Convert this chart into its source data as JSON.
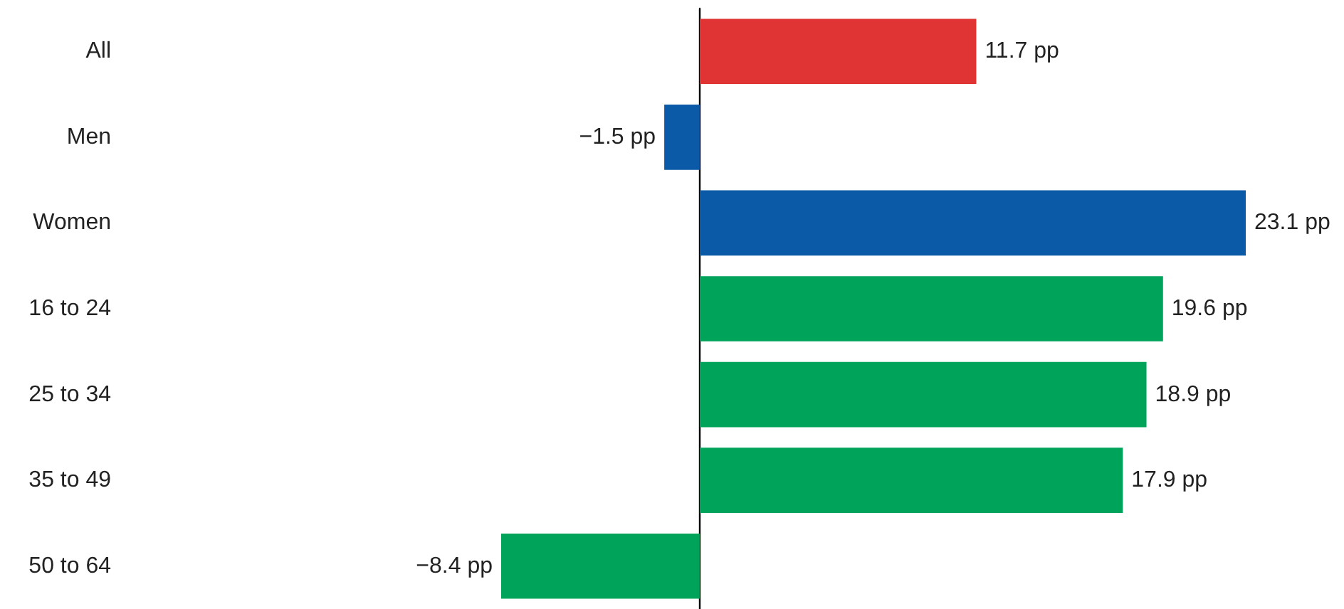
{
  "chart_data": {
    "type": "bar",
    "orientation": "horizontal",
    "categories": [
      "All",
      "Men",
      "Women",
      "16 to 24",
      "25 to 34",
      "35 to 49",
      "50 to 64"
    ],
    "values": [
      11.7,
      -1.5,
      23.1,
      19.6,
      18.9,
      17.9,
      -8.4
    ],
    "colors": [
      "#e03333",
      "#0b5aa8",
      "#0b5aa8",
      "#00a35a",
      "#00a35a",
      "#00a35a",
      "#00a35a"
    ],
    "value_labels": [
      "11.7 pp",
      "−1.5 pp",
      "23.1 pp",
      "19.6 pp",
      "18.9 pp",
      "17.9 pp",
      "−8.4 pp"
    ]
  }
}
